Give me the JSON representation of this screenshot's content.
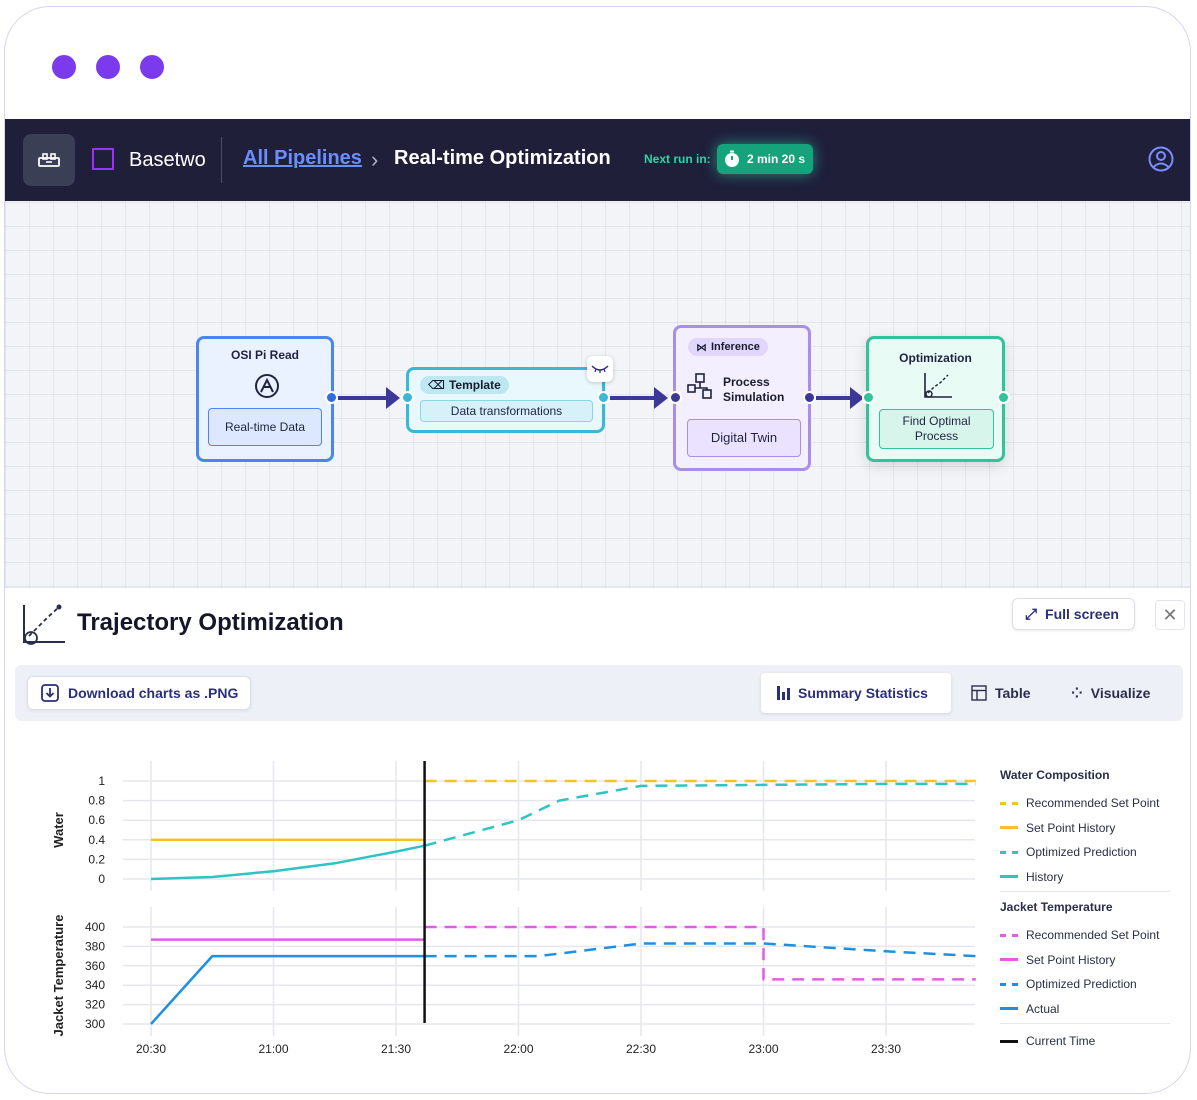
{
  "nav": {
    "brand": "Basetwo",
    "breadcrumb_link": "All Pipelines",
    "breadcrumb_current": "Real-time Optimization",
    "next_run_label": "Next run in:",
    "timer": "2 min 20 s"
  },
  "pipeline": {
    "nodes": [
      {
        "title": "OSI Pi Read",
        "body": "Real-time Data"
      },
      {
        "title": "Template",
        "body": "Data transformations"
      },
      {
        "title": "Inference",
        "subtitle_line1": "Process",
        "subtitle_line2": "Simulation",
        "body": "Digital Twin"
      },
      {
        "title": "Optimization",
        "body_line1": "Find Optimal",
        "body_line2": "Process"
      }
    ]
  },
  "panel": {
    "title": "Trajectory Optimization",
    "fullscreen": "Full screen",
    "download": "Download charts as .PNG",
    "tabs": [
      "Summary Statistics",
      "Table",
      "Visualize"
    ]
  },
  "chart_data": [
    {
      "type": "line",
      "ylabel": "Water",
      "ylim": [
        0,
        1
      ],
      "yticks": [
        "1",
        "0.8",
        "0.6",
        "0.4",
        "0.2",
        "0"
      ],
      "xticks": [
        "20:30",
        "21:00",
        "21:30",
        "22:00",
        "22:30",
        "23:00",
        "23:30"
      ],
      "current_time": "21:37",
      "legend_title": "Water Composition",
      "series": [
        {
          "name": "Recommended Set Point",
          "color": "#f5c228",
          "style": "dashed",
          "x": [
            "21:37",
            "23:52"
          ],
          "y": [
            1.0,
            1.0
          ]
        },
        {
          "name": "Set Point History",
          "color": "#f5c228",
          "style": "solid",
          "x": [
            "20:30",
            "21:37"
          ],
          "y": [
            0.4,
            0.4
          ]
        },
        {
          "name": "Optimized Prediction",
          "color": "#2ec4c4",
          "style": "dashed",
          "x": [
            "21:37",
            "22:00",
            "22:10",
            "22:30",
            "23:00",
            "23:30",
            "23:52"
          ],
          "y": [
            0.34,
            0.6,
            0.8,
            0.95,
            0.96,
            0.97,
            0.97
          ]
        },
        {
          "name": "History",
          "color": "#2ec4c4",
          "style": "solid",
          "x": [
            "20:30",
            "20:45",
            "21:00",
            "21:15",
            "21:30",
            "21:37"
          ],
          "y": [
            0.0,
            0.02,
            0.08,
            0.16,
            0.28,
            0.34
          ]
        }
      ]
    },
    {
      "type": "line",
      "ylabel": "Jacket Temperature",
      "ylim": [
        300,
        400
      ],
      "yticks": [
        "400",
        "380",
        "360",
        "340",
        "320",
        "300"
      ],
      "xticks": [
        "20:30",
        "21:00",
        "21:30",
        "22:00",
        "22:30",
        "23:00",
        "23:30"
      ],
      "legend_title": "Jacket Temperature",
      "series": [
        {
          "name": "Recommended Set Point",
          "color": "#e35ce8",
          "style": "dashed",
          "x": [
            "21:37",
            "23:00",
            "23:00",
            "23:52"
          ],
          "y": [
            400,
            400,
            346,
            346
          ]
        },
        {
          "name": "Set Point History",
          "color": "#e35ce8",
          "style": "solid",
          "x": [
            "20:30",
            "21:37"
          ],
          "y": [
            387,
            387
          ]
        },
        {
          "name": "Optimized Prediction",
          "color": "#1e90e0",
          "style": "dashed",
          "x": [
            "21:37",
            "22:05",
            "22:30",
            "23:00",
            "23:30",
            "23:52"
          ],
          "y": [
            370,
            370,
            383,
            383,
            375,
            370
          ]
        },
        {
          "name": "Actual",
          "color": "#1e90e0",
          "style": "solid",
          "x": [
            "20:30",
            "20:45",
            "21:37"
          ],
          "y": [
            300,
            370,
            370
          ]
        }
      ]
    }
  ],
  "legend_current_time": "Current Time"
}
